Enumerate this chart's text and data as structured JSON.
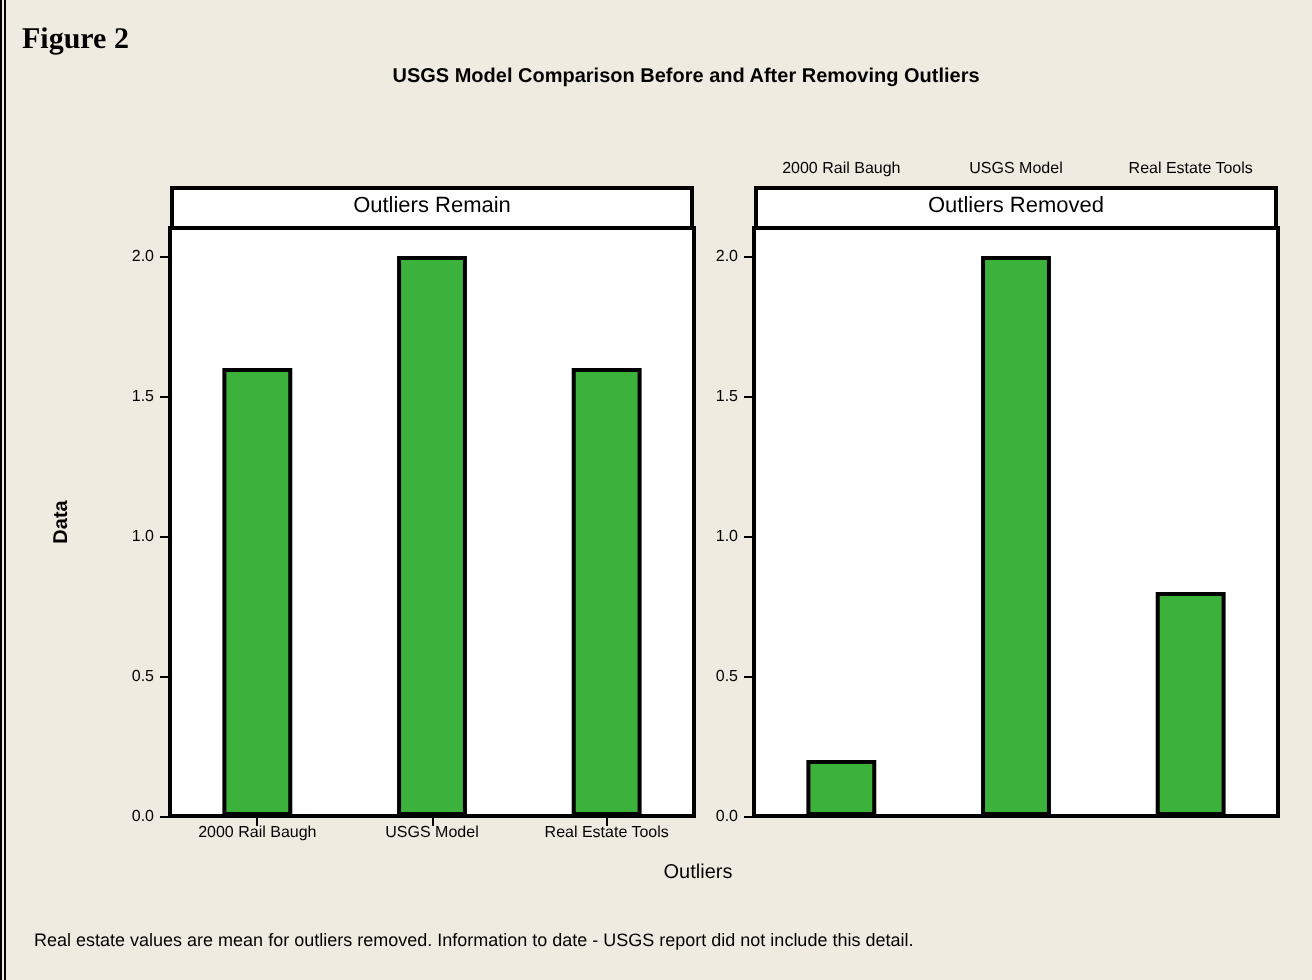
{
  "chart_data": [
    {
      "type": "bar",
      "title": "Outliers Remain",
      "xlabel": "Outliers",
      "ylabel": "Data",
      "annotations": [
        "Figure 2",
        "USGS Model Comparison Before and After Removing Outliers",
        "Real estate values are mean for outliers removed. Information to date - USGS report did not include this detail."
      ],
      "categories": [
        "2000 Rail Baugh",
        "USGS Model",
        "Real Estate Tools"
      ],
      "values": [
        1.6,
        2.0,
        1.6
      ],
      "color": "#3cb13c",
      "ylim": [
        0,
        2.1
      ],
      "yticks": [
        {
          "value": 0,
          "label": "0.0"
        },
        {
          "value": 0.5,
          "label": "0.5"
        },
        {
          "value": 1,
          "label": "1.0"
        },
        {
          "value": 1.5,
          "label": "1.5"
        },
        {
          "value": 2,
          "label": "2.0"
        }
      ],
      "grid": false
    },
    {
      "type": "bar",
      "title": "Outliers Removed",
      "categories": [
        "2000 Rail Baugh",
        "USGS Model",
        "Real Estate Tools"
      ],
      "values": [
        0.2,
        2.0,
        0.8
      ],
      "color": "#3cb13c",
      "ylim": [
        0,
        2.1
      ],
      "yticks": [
        {
          "value": 0,
          "label": "0.0"
        },
        {
          "value": 0.5,
          "label": "0.5"
        },
        {
          "value": 1,
          "label": "1.0"
        },
        {
          "value": 1.5,
          "label": "1.5"
        },
        {
          "value": 2,
          "label": "2.0"
        }
      ],
      "grid": false
    }
  ]
}
